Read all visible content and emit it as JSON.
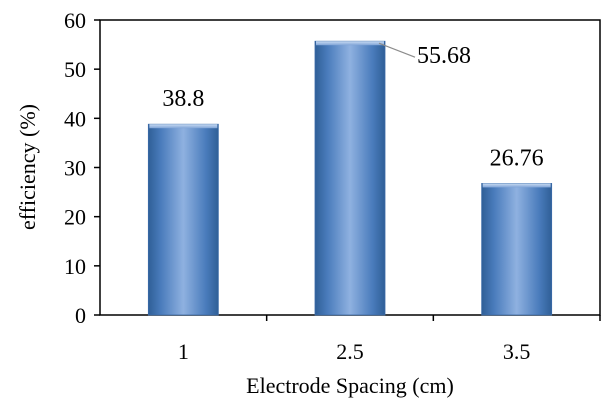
{
  "chart_data": {
    "type": "bar",
    "categories": [
      "1",
      "2.5",
      "3.5"
    ],
    "values": [
      38.8,
      55.68,
      26.76
    ],
    "data_labels": [
      "38.8",
      "55.68",
      "26.76"
    ],
    "title": "",
    "xlabel": "Electrode Spacing (cm)",
    "ylabel": "efficiency  (%)",
    "ylim": [
      0,
      60
    ],
    "yticks": [
      "0",
      "10",
      "20",
      "30",
      "40",
      "50",
      "60"
    ],
    "grid": false,
    "legend": "none",
    "bar_color": "#4f81bd"
  }
}
